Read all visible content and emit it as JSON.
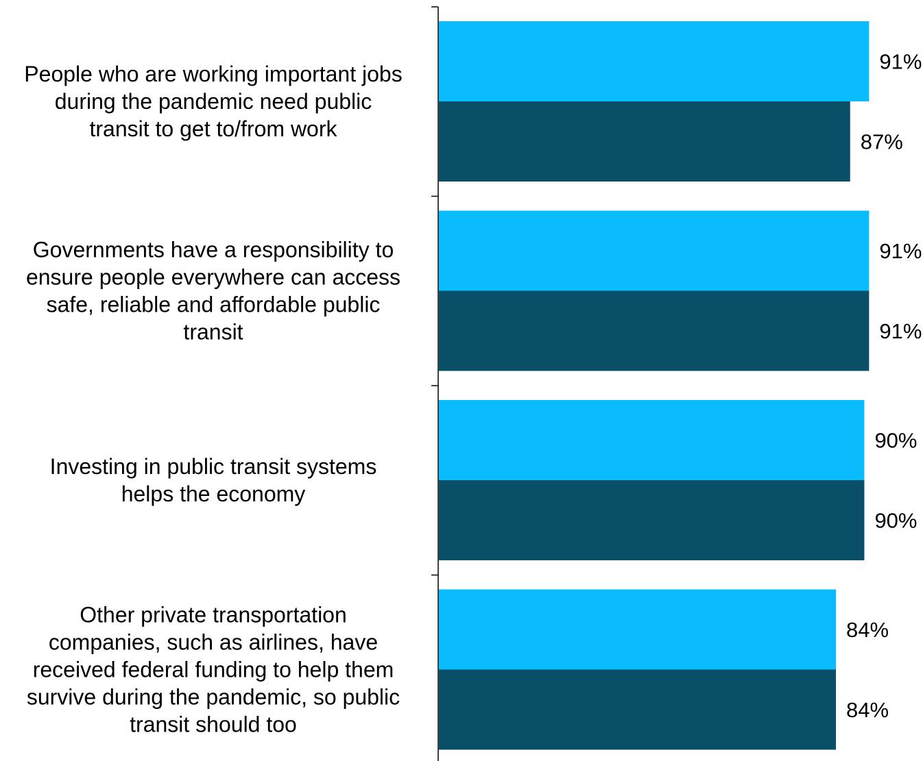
{
  "chart_data": {
    "type": "bar",
    "orientation": "horizontal",
    "categories": [
      "People who are working important jobs during the pandemic need public transit to get to/from work",
      "Governments have a responsibility to ensure people everywhere can access safe, reliable and affordable public transit",
      "Investing in public transit systems helps the economy",
      "Other private transportation companies, such as airlines, have received federal funding to help them survive during the pandemic, so public transit should too"
    ],
    "category_lines": [
      [
        "People who are working important jobs",
        "during the pandemic need public",
        "transit to get to/from work"
      ],
      [
        "Governments have a responsibility to",
        "ensure people everywhere can access",
        "safe, reliable and affordable public",
        "transit"
      ],
      [
        "Investing in public transit systems",
        "helps the economy"
      ],
      [
        "Other private transportation",
        "companies, such as airlines, have",
        "received federal funding to help them",
        "survive during the pandemic, so public",
        "transit should too"
      ]
    ],
    "series": [
      {
        "values": [
          91,
          91,
          90,
          84
        ],
        "labels": [
          "91%",
          "91%",
          "90%",
          "84%"
        ],
        "color": "#09BCFD"
      },
      {
        "values": [
          87,
          91,
          90,
          84
        ],
        "labels": [
          "87%",
          "91%",
          "90%",
          "84%"
        ],
        "color": "#0A4F68"
      }
    ],
    "xlim": [
      0,
      100
    ],
    "grid": false,
    "legend": "none"
  }
}
